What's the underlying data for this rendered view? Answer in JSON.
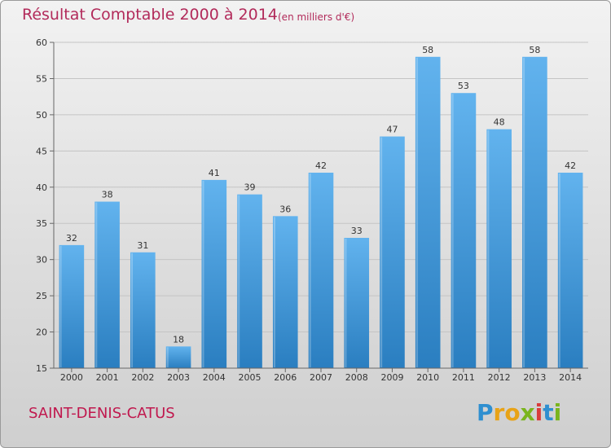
{
  "header": {
    "title": "Résultat Comptable 2000 à 2014",
    "subtitle": "(en milliers d'€)"
  },
  "footer": {
    "commune": "SAINT-DENIS-CATUS",
    "brand_letters": [
      "P",
      "r",
      "o",
      "x",
      "i",
      "t",
      "i"
    ],
    "brand_colors": [
      "#2f8fd0",
      "#e8a317",
      "#e8a317",
      "#7ab51d",
      "#d93c3c",
      "#2f8fd0",
      "#7ab51d"
    ]
  },
  "colors": {
    "bar_light": "#62b3ee",
    "bar_dark": "#2a7ec0",
    "grid": "#c4c4c4",
    "title": "#b22a5a"
  },
  "chart_data": {
    "type": "bar",
    "title": "Résultat Comptable 2000 à 2014",
    "subtitle": "(en milliers d'€)",
    "xlabel": "",
    "ylabel": "",
    "categories": [
      "2000",
      "2001",
      "2002",
      "2003",
      "2004",
      "2005",
      "2006",
      "2007",
      "2008",
      "2009",
      "2010",
      "2011",
      "2012",
      "2013",
      "2014"
    ],
    "values": [
      32,
      38,
      31,
      18,
      41,
      39,
      36,
      42,
      33,
      47,
      58,
      53,
      48,
      58,
      42
    ],
    "ylim": [
      15,
      60
    ],
    "yticks": [
      15,
      20,
      25,
      30,
      35,
      40,
      45,
      50,
      55,
      60
    ],
    "grid": true
  }
}
